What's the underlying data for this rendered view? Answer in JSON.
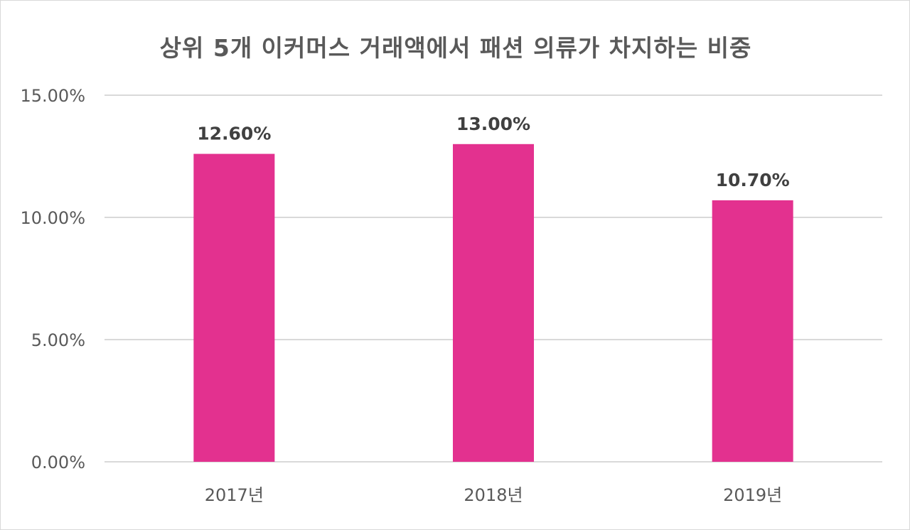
{
  "chart_data": {
    "type": "bar",
    "title": "상위 5개 이커머스 거래액에서 패션 의류가 차지하는 비중",
    "categories": [
      "2017년",
      "2018년",
      "2019년"
    ],
    "values": [
      12.6,
      13.0,
      10.7
    ],
    "data_labels": [
      "12.60%",
      "13.00%",
      "10.70%"
    ],
    "y_ticks": [
      0,
      5,
      10,
      15
    ],
    "y_tick_labels": [
      "0.00%",
      "5.00%",
      "10.00%",
      "15.00%"
    ],
    "ylim": [
      0,
      15
    ],
    "grid": true,
    "legend": "none",
    "bar_color": "#e3318f",
    "gridline_color": "#d9d9d9",
    "axis_label_color": "#595959"
  }
}
